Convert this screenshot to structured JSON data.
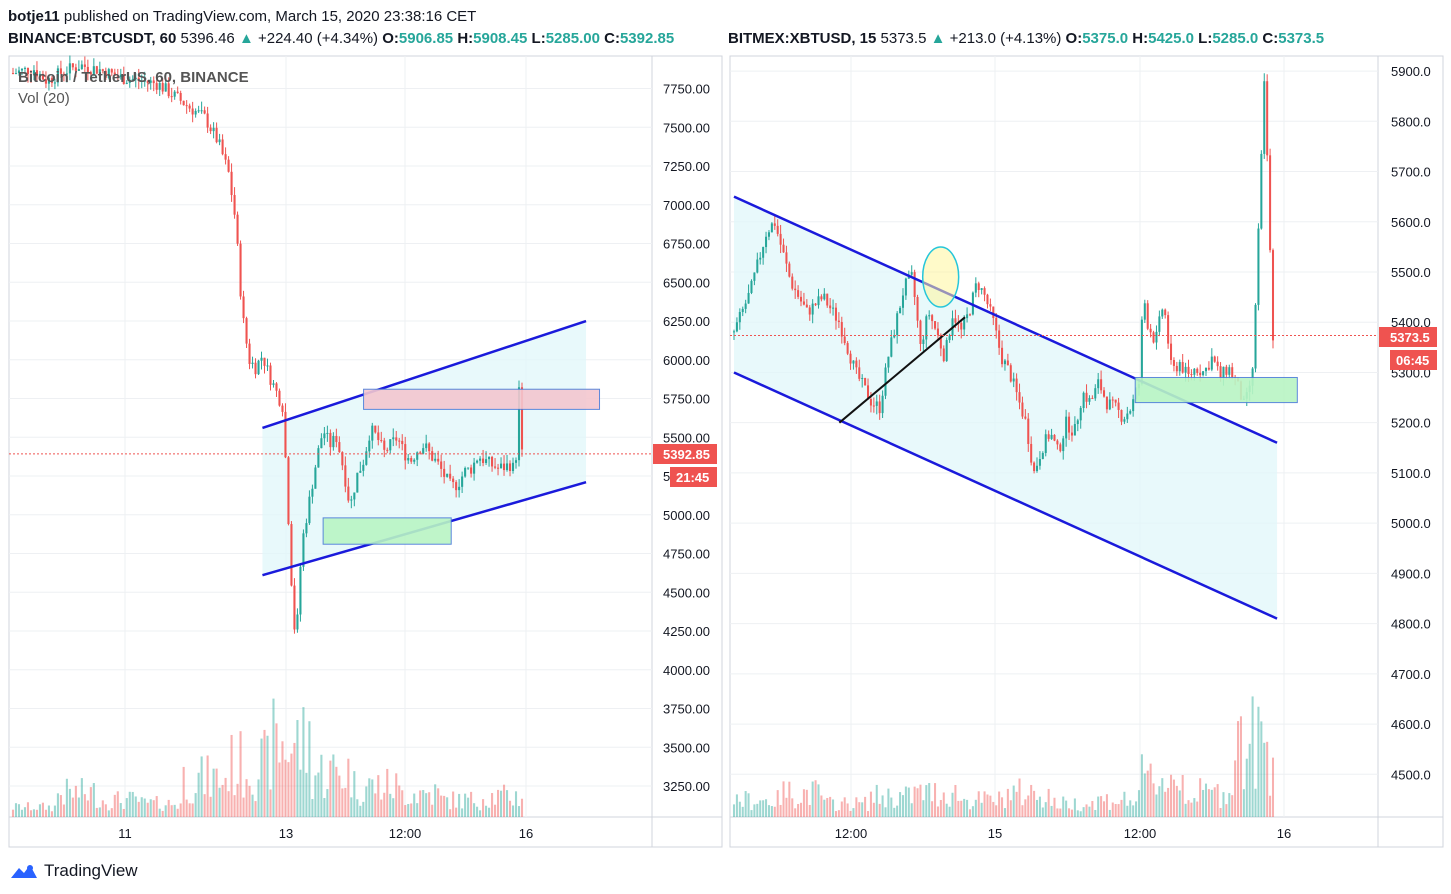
{
  "header": {
    "author": "botje11",
    "published": "published on TradingView.com, March 15, 2020 23:38:16 CET"
  },
  "colors": {
    "up": "#26a69a",
    "down": "#ef5350",
    "trendline": "#1a1adb",
    "channel_fill": "#e0f7fa",
    "support_box": "#b9f5c4",
    "resistance_box": "#f4c7cf",
    "last_price_label": "#ef5350"
  },
  "left": {
    "symbol": "BINANCE:BTCUSDT, 60",
    "last": "5396.46",
    "change": "+224.40 (+4.34%)",
    "o_label": "O:",
    "o": "5906.85",
    "h_label": "H:",
    "h": "5908.45",
    "l_label": "L:",
    "l": "5285.00",
    "c_label": "C:",
    "c": "5392.85",
    "legend_title": "Bitcoin / TetherUS, 60, BINANCE",
    "legend_vol": "Vol (20)",
    "price_label": "5392.85",
    "countdown_label": "21:45",
    "x_ticks": [
      "11",
      "13",
      "12:00",
      "16"
    ]
  },
  "right": {
    "symbol": "BITMEX:XBTUSD, 15",
    "last": "5373.5",
    "change": "+213.0 (+4.13%)",
    "o_label": "O:",
    "o": "5375.0",
    "h_label": "H:",
    "h": "5425.0",
    "l_label": "L:",
    "l": "5285.0",
    "c_label": "C:",
    "c": "5373.5",
    "price_label": "5373.5",
    "countdown_label": "06:45",
    "x_ticks": [
      "12:00",
      "15",
      "12:00",
      "16"
    ]
  },
  "footer": {
    "brand": "TradingView",
    "logo_icon": "tradingview-logo-icon"
  },
  "chart_data": [
    {
      "type": "candlestick",
      "title": "Bitcoin / TetherUS, 60, BINANCE",
      "price_scale": [
        3250,
        3500,
        3750,
        4000,
        4250,
        4500,
        4750,
        5000,
        5250,
        5500,
        5750,
        6000,
        6250,
        6500,
        6750,
        7000,
        7250,
        7500,
        7750
      ],
      "ylim": [
        3050,
        7960
      ],
      "x_ticks": [
        "11",
        "13",
        "12:00",
        "16"
      ],
      "close_path": [
        [
          0,
          7850
        ],
        [
          6,
          7880
        ],
        [
          10,
          7800
        ],
        [
          15,
          7860
        ],
        [
          20,
          7900
        ],
        [
          26,
          7870
        ],
        [
          32,
          7820
        ],
        [
          38,
          7800
        ],
        [
          43,
          7780
        ],
        [
          48,
          7700
        ],
        [
          53,
          7620
        ],
        [
          57,
          7560
        ],
        [
          61,
          7400
        ],
        [
          64,
          7200
        ],
        [
          66,
          6900
        ],
        [
          68,
          6300
        ],
        [
          70,
          6000
        ],
        [
          72,
          5950
        ],
        [
          74,
          6030
        ],
        [
          76,
          5900
        ],
        [
          78,
          5800
        ],
        [
          80,
          5700
        ],
        [
          81,
          5300
        ],
        [
          82,
          4850
        ],
        [
          83,
          4400
        ],
        [
          84,
          4150
        ],
        [
          85,
          4600
        ],
        [
          86,
          4850
        ],
        [
          88,
          5100
        ],
        [
          90,
          5350
        ],
        [
          92,
          5550
        ],
        [
          94,
          5450
        ],
        [
          96,
          5500
        ],
        [
          98,
          5300
        ],
        [
          100,
          5050
        ],
        [
          102,
          5250
        ],
        [
          104,
          5350
        ],
        [
          106,
          5550
        ],
        [
          108,
          5500
        ],
        [
          110,
          5400
        ],
        [
          112,
          5450
        ],
        [
          114,
          5500
        ],
        [
          116,
          5400
        ],
        [
          118,
          5350
        ],
        [
          120,
          5420
        ],
        [
          122,
          5450
        ],
        [
          124,
          5380
        ],
        [
          126,
          5330
        ],
        [
          128,
          5250
        ],
        [
          130,
          5180
        ],
        [
          132,
          5200
        ],
        [
          134,
          5280
        ],
        [
          136,
          5300
        ],
        [
          138,
          5380
        ],
        [
          140,
          5350
        ],
        [
          142,
          5320
        ],
        [
          144,
          5300
        ],
        [
          146,
          5310
        ],
        [
          148,
          5330
        ],
        [
          149,
          5250
        ],
        [
          150,
          5850
        ],
        [
          151,
          5390
        ]
      ],
      "volume_profile": [
        0.1,
        0.3,
        0.2,
        0.15,
        0.5,
        0.7,
        1.0,
        0.6,
        0.4,
        0.3,
        0.2,
        0.25
      ],
      "annotations": [
        {
          "type": "trendline",
          "from": [
            74,
            5560
          ],
          "to": [
            170,
            6250
          ]
        },
        {
          "type": "trendline",
          "from": [
            74,
            4610
          ],
          "to": [
            170,
            5210
          ]
        },
        {
          "type": "rectangle",
          "role": "resistance",
          "x": [
            104,
            174
          ],
          "y": [
            5680,
            5810
          ]
        },
        {
          "type": "rectangle",
          "role": "support",
          "x": [
            92,
            130
          ],
          "y": [
            4810,
            4980
          ]
        },
        {
          "type": "hline",
          "y": 5392.85
        }
      ]
    },
    {
      "type": "candlestick",
      "title": "BITMEX:XBTUSD, 15",
      "price_scale": [
        4500,
        4600,
        4700,
        4800,
        4900,
        5000,
        5100,
        5200,
        5300,
        5400,
        5500,
        5600,
        5700,
        5800,
        5900
      ],
      "ylim": [
        4415,
        5930
      ],
      "x_ticks": [
        "12:00",
        "15",
        "12:00",
        "16"
      ],
      "close_path": [
        [
          0,
          5380
        ],
        [
          4,
          5460
        ],
        [
          8,
          5580
        ],
        [
          10,
          5600
        ],
        [
          14,
          5480
        ],
        [
          18,
          5420
        ],
        [
          22,
          5450
        ],
        [
          26,
          5400
        ],
        [
          30,
          5300
        ],
        [
          34,
          5240
        ],
        [
          36,
          5230
        ],
        [
          38,
          5330
        ],
        [
          40,
          5400
        ],
        [
          42,
          5470
        ],
        [
          44,
          5490
        ],
        [
          46,
          5350
        ],
        [
          48,
          5420
        ],
        [
          50,
          5380
        ],
        [
          52,
          5330
        ],
        [
          54,
          5420
        ],
        [
          56,
          5380
        ],
        [
          58,
          5420
        ],
        [
          60,
          5480
        ],
        [
          62,
          5450
        ],
        [
          64,
          5400
        ],
        [
          66,
          5330
        ],
        [
          68,
          5300
        ],
        [
          70,
          5250
        ],
        [
          72,
          5200
        ],
        [
          74,
          5100
        ],
        [
          76,
          5150
        ],
        [
          78,
          5180
        ],
        [
          80,
          5140
        ],
        [
          82,
          5200
        ],
        [
          84,
          5180
        ],
        [
          86,
          5260
        ],
        [
          88,
          5240
        ],
        [
          90,
          5280
        ],
        [
          92,
          5240
        ],
        [
          94,
          5230
        ],
        [
          96,
          5210
        ],
        [
          98,
          5230
        ],
        [
          100,
          5280
        ],
        [
          101,
          5460
        ],
        [
          102,
          5400
        ],
        [
          104,
          5360
        ],
        [
          106,
          5440
        ],
        [
          108,
          5300
        ],
        [
          110,
          5320
        ],
        [
          112,
          5290
        ],
        [
          114,
          5310
        ],
        [
          116,
          5300
        ],
        [
          118,
          5330
        ],
        [
          120,
          5290
        ],
        [
          122,
          5310
        ],
        [
          124,
          5280
        ],
        [
          126,
          5230
        ],
        [
          128,
          5300
        ],
        [
          129,
          5500
        ],
        [
          130,
          5700
        ],
        [
          131,
          5900
        ],
        [
          132,
          5600
        ],
        [
          133,
          5373
        ]
      ],
      "volume_profile": [
        0.2,
        0.3,
        0.15,
        0.25,
        0.3,
        0.2,
        0.3,
        0.15,
        0.2,
        0.5,
        0.3,
        1.0
      ],
      "annotations": [
        {
          "type": "trendline",
          "from": [
            0,
            5650
          ],
          "to": [
            134,
            5160
          ]
        },
        {
          "type": "trendline",
          "from": [
            0,
            5300
          ],
          "to": [
            134,
            4810
          ]
        },
        {
          "type": "trendline",
          "from": [
            26,
            5200
          ],
          "to": [
            57,
            5410
          ]
        },
        {
          "type": "ellipse",
          "center": [
            51,
            5490
          ]
        },
        {
          "type": "rectangle",
          "role": "support",
          "x": [
            99,
            139
          ],
          "y": [
            5240,
            5290
          ]
        },
        {
          "type": "hline",
          "y": 5373.5
        }
      ]
    }
  ]
}
